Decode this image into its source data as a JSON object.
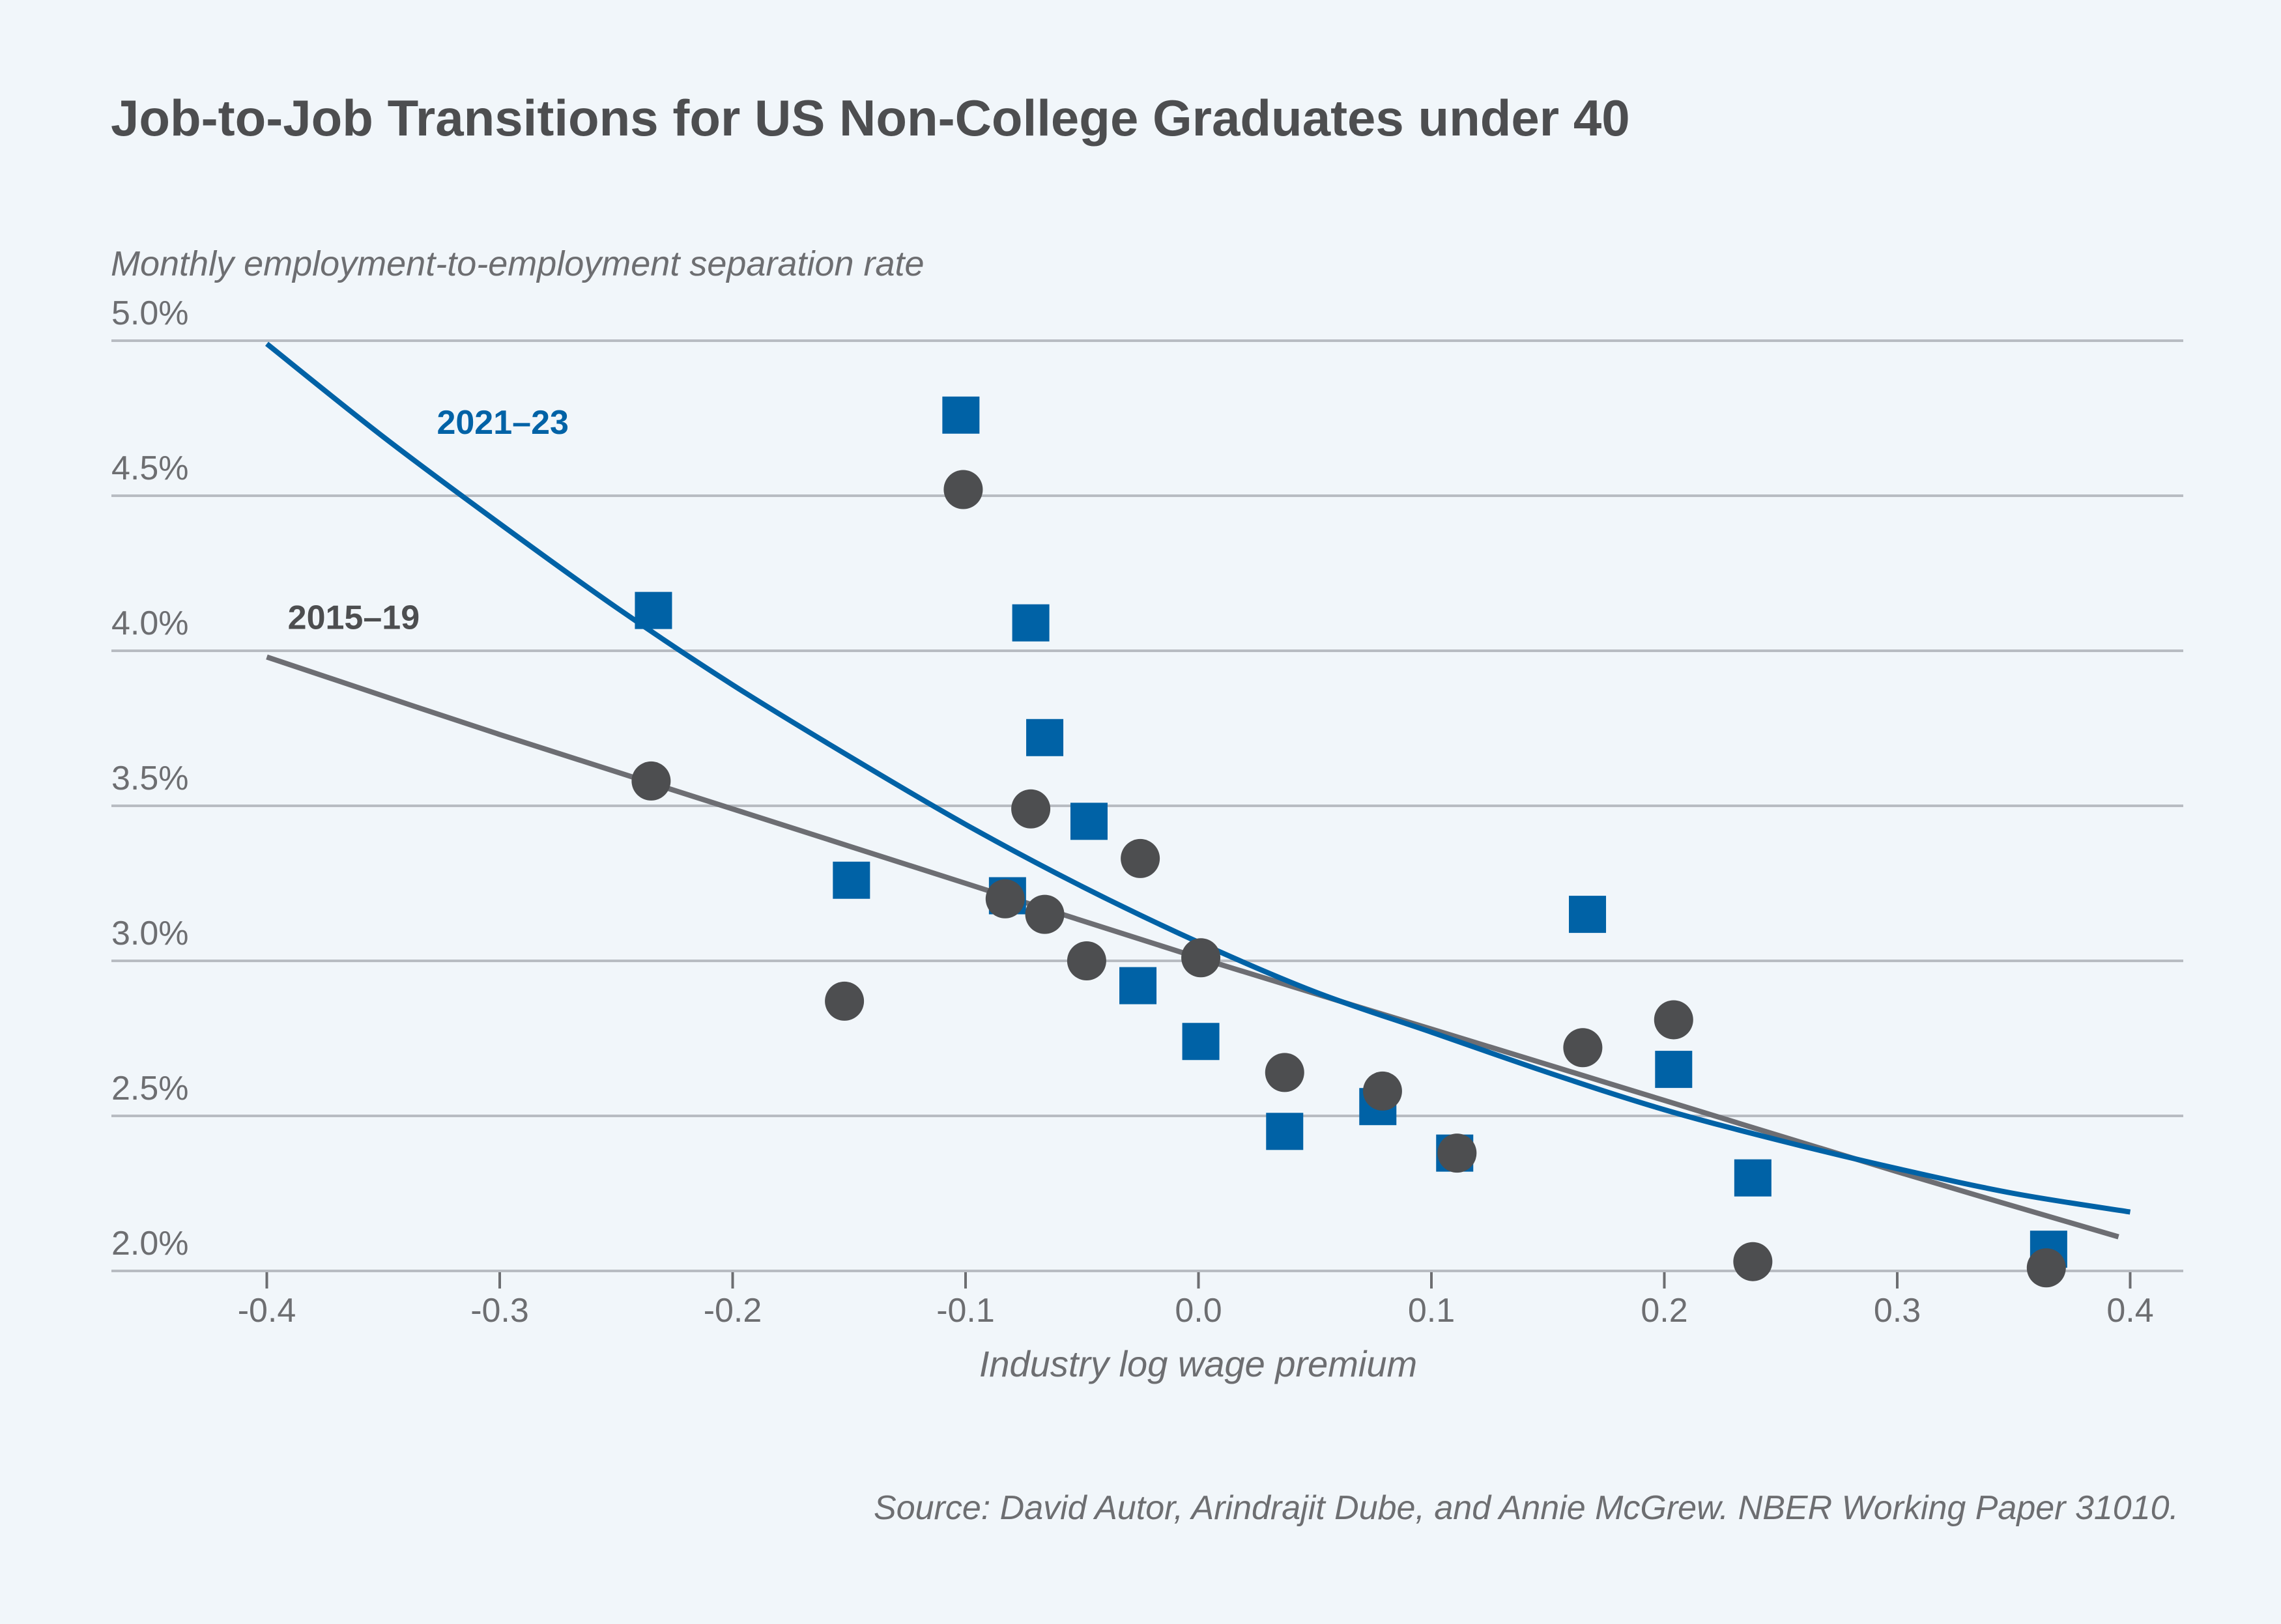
{
  "colors": {
    "background": "#F1F6FA",
    "series_2021_23": "#0062A6",
    "series_2015_19_points": "#4D4E50",
    "series_2015_19_line": "#6D6E73",
    "gridline": "#B8BCC2",
    "text": "#6D6E71",
    "title": "#4D4E50"
  },
  "chart_data": {
    "type": "scatter",
    "title": "Job-to-Job Transitions for US Non-College Graduates under 40",
    "ylabel": "Monthly employment-to-employment separation rate",
    "xlabel": "Industry log wage premium",
    "source": "Source: David Autor, Arindrajit Dube, and Annie McGrew. NBER Working Paper 31010.",
    "xlim": [
      -0.45,
      0.43
    ],
    "ylim": [
      2.0,
      5.0
    ],
    "x_ticks": [
      -0.4,
      -0.3,
      -0.2,
      -0.1,
      0.0,
      0.1,
      0.2,
      0.3,
      0.4
    ],
    "x_tick_labels": [
      "-0.4",
      "-0.3",
      "-0.2",
      "-0.1",
      "0.0",
      "0.1",
      "0.2",
      "0.3",
      "0.4"
    ],
    "y_ticks": [
      2.0,
      2.5,
      3.0,
      3.5,
      4.0,
      4.5,
      5.0
    ],
    "y_tick_labels": [
      "2.0%",
      "2.5%",
      "3.0%",
      "3.5%",
      "4.0%",
      "4.5%",
      "5.0%"
    ],
    "grid": "horizontal",
    "legend": "inline labels near fit lines (top-left)",
    "series": [
      {
        "name": "2021–23",
        "marker": "square",
        "color": "#0062A6",
        "points": [
          [
            -0.234,
            4.13
          ],
          [
            -0.149,
            3.26
          ],
          [
            -0.102,
            4.76
          ],
          [
            -0.082,
            3.21
          ],
          [
            -0.072,
            4.09
          ],
          [
            -0.066,
            3.72
          ],
          [
            -0.047,
            3.45
          ],
          [
            -0.026,
            2.92
          ],
          [
            0.001,
            2.74
          ],
          [
            0.037,
            2.45
          ],
          [
            0.077,
            2.53
          ],
          [
            0.11,
            2.38
          ],
          [
            0.167,
            3.15
          ],
          [
            0.204,
            2.65
          ],
          [
            0.238,
            2.3
          ],
          [
            0.365,
            2.07
          ]
        ],
        "fit": [
          [
            -0.4,
            4.99
          ],
          [
            -0.35,
            4.69
          ],
          [
            -0.3,
            4.41
          ],
          [
            -0.25,
            4.14
          ],
          [
            -0.2,
            3.89
          ],
          [
            -0.15,
            3.66
          ],
          [
            -0.1,
            3.44
          ],
          [
            -0.05,
            3.24
          ],
          [
            0.0,
            3.06
          ],
          [
            0.05,
            2.9
          ],
          [
            0.1,
            2.77
          ],
          [
            0.15,
            2.64
          ],
          [
            0.2,
            2.52
          ],
          [
            0.25,
            2.42
          ],
          [
            0.3,
            2.33
          ],
          [
            0.35,
            2.25
          ],
          [
            0.4,
            2.19
          ]
        ],
        "label_anchor": [
          -0.327,
          4.7
        ]
      },
      {
        "name": "2015–19",
        "marker": "circle",
        "color": "#4D4E50",
        "line_color": "#6D6E73",
        "points": [
          [
            -0.235,
            3.58
          ],
          [
            -0.152,
            2.87
          ],
          [
            -0.101,
            4.52
          ],
          [
            -0.083,
            3.2
          ],
          [
            -0.072,
            3.49
          ],
          [
            -0.066,
            3.15
          ],
          [
            -0.048,
            3.0
          ],
          [
            -0.025,
            3.33
          ],
          [
            0.001,
            3.01
          ],
          [
            0.037,
            2.64
          ],
          [
            0.079,
            2.58
          ],
          [
            0.111,
            2.38
          ],
          [
            0.165,
            2.72
          ],
          [
            0.204,
            2.81
          ],
          [
            0.238,
            2.03
          ],
          [
            0.364,
            2.01
          ]
        ],
        "fit": [
          [
            -0.4,
            3.98
          ],
          [
            -0.3,
            3.73
          ],
          [
            -0.2,
            3.49
          ],
          [
            -0.1,
            3.25
          ],
          [
            0.0,
            3.01
          ],
          [
            0.1,
            2.78
          ],
          [
            0.2,
            2.55
          ],
          [
            0.3,
            2.32
          ],
          [
            0.395,
            2.11
          ]
        ],
        "label_anchor": [
          -0.391,
          4.07
        ]
      }
    ]
  }
}
